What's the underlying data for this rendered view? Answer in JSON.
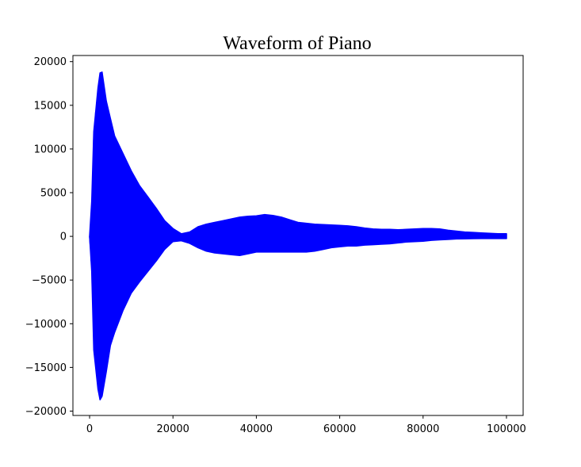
{
  "chart_data": {
    "type": "line",
    "title": "Waveform of Piano",
    "xlabel": "",
    "ylabel": "",
    "xlim": [
      -4000,
      104000
    ],
    "ylim": [
      -20500,
      20700
    ],
    "x_ticks": [
      0,
      20000,
      40000,
      60000,
      80000,
      100000
    ],
    "x_tick_labels": [
      "0",
      "20000",
      "40000",
      "60000",
      "80000",
      "100000"
    ],
    "y_ticks": [
      20000,
      15000,
      10000,
      5000,
      0,
      -5000,
      -10000,
      -15000,
      -20000
    ],
    "y_tick_labels": [
      "20000",
      "15000",
      "10000",
      "5000",
      "0",
      "−5000",
      "−10000",
      "−15000",
      "−20000"
    ],
    "grid": false,
    "series": [
      {
        "color": "#0000ff",
        "envelope_x": [
          0,
          500,
          1000,
          2000,
          2500,
          3000,
          4000,
          5000,
          6000,
          8000,
          10000,
          12000,
          14000,
          16000,
          18000,
          20000,
          22000,
          24000,
          26000,
          28000,
          30000,
          32000,
          34000,
          36000,
          38000,
          40000,
          42000,
          44000,
          46000,
          48000,
          50000,
          52000,
          54000,
          56000,
          58000,
          60000,
          62000,
          64000,
          66000,
          68000,
          70000,
          72000,
          74000,
          76000,
          78000,
          80000,
          82000,
          84000,
          86000,
          88000,
          90000,
          92000,
          94000,
          96000,
          98000,
          100000
        ],
        "envelope_upper": [
          0,
          4000,
          12000,
          17000,
          18700,
          18800,
          15500,
          13500,
          11500,
          9500,
          7500,
          5800,
          4500,
          3200,
          1800,
          900,
          300,
          500,
          1100,
          1400,
          1600,
          1800,
          2000,
          2200,
          2300,
          2350,
          2500,
          2400,
          2200,
          1900,
          1600,
          1500,
          1400,
          1350,
          1300,
          1250,
          1200,
          1100,
          950,
          850,
          800,
          800,
          750,
          800,
          850,
          900,
          900,
          850,
          700,
          600,
          500,
          450,
          400,
          350,
          300,
          300
        ],
        "envelope_lower": [
          0,
          -4000,
          -13000,
          -17500,
          -18700,
          -18300,
          -15500,
          -12500,
          -11000,
          -8500,
          -6500,
          -5200,
          -4000,
          -2800,
          -1500,
          -600,
          -500,
          -800,
          -1300,
          -1700,
          -1900,
          -2000,
          -2100,
          -2200,
          -2000,
          -1800,
          -1800,
          -1800,
          -1800,
          -1800,
          -1800,
          -1800,
          -1700,
          -1500,
          -1300,
          -1200,
          -1100,
          -1100,
          -1000,
          -950,
          -900,
          -850,
          -750,
          -650,
          -600,
          -550,
          -450,
          -400,
          -350,
          -300,
          -280,
          -260,
          -250,
          -250,
          -250,
          -250
        ]
      }
    ]
  }
}
